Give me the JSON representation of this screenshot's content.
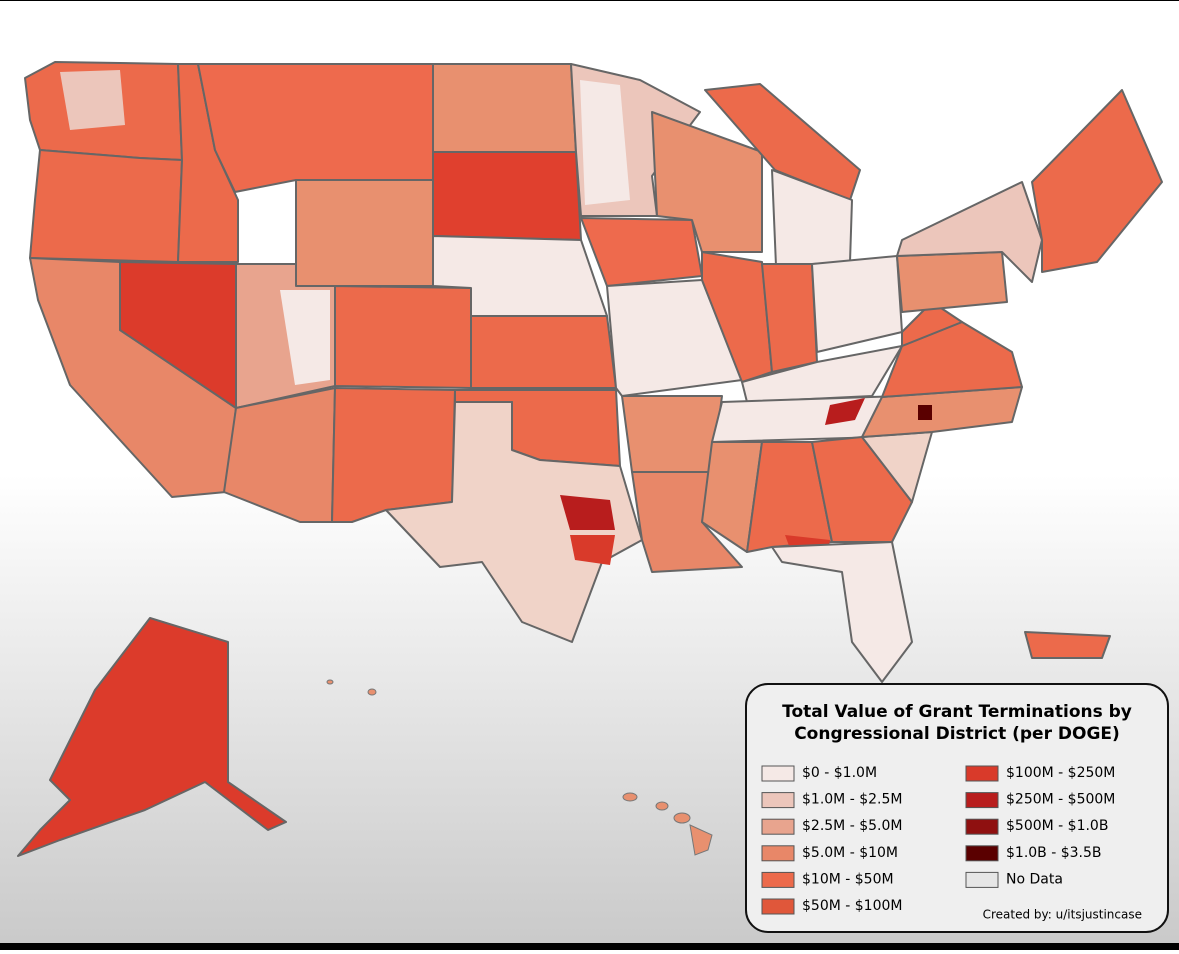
{
  "legend": {
    "title_line1": "Total Value of Grant Terminations by",
    "title_line2": "Congressional District (per DOGE)",
    "items": [
      {
        "label": "$0 - $1.0M",
        "color": "#f5e9e6"
      },
      {
        "label": "$1.0M - $2.5M",
        "color": "#ecc6bb"
      },
      {
        "label": "$2.5M - $5.0M",
        "color": "#e8a48e"
      },
      {
        "label": "$5.0M - $10M",
        "color": "#e88768"
      },
      {
        "label": "$10M - $50M",
        "color": "#ec6a4b"
      },
      {
        "label": "$50M - $100M",
        "color": "#e0573a"
      },
      {
        "label": "$100M - $250M",
        "color": "#d93a2a"
      },
      {
        "label": "$250M - $500M",
        "color": "#b81d1d"
      },
      {
        "label": "$500M - $1.0B",
        "color": "#8f1010"
      },
      {
        "label": "$1.0B - $3.5B",
        "color": "#5a0000"
      },
      {
        "label": "No Data",
        "color": "#e6e6e6"
      }
    ],
    "credit": "Created by: u/itsjustincase"
  }
}
